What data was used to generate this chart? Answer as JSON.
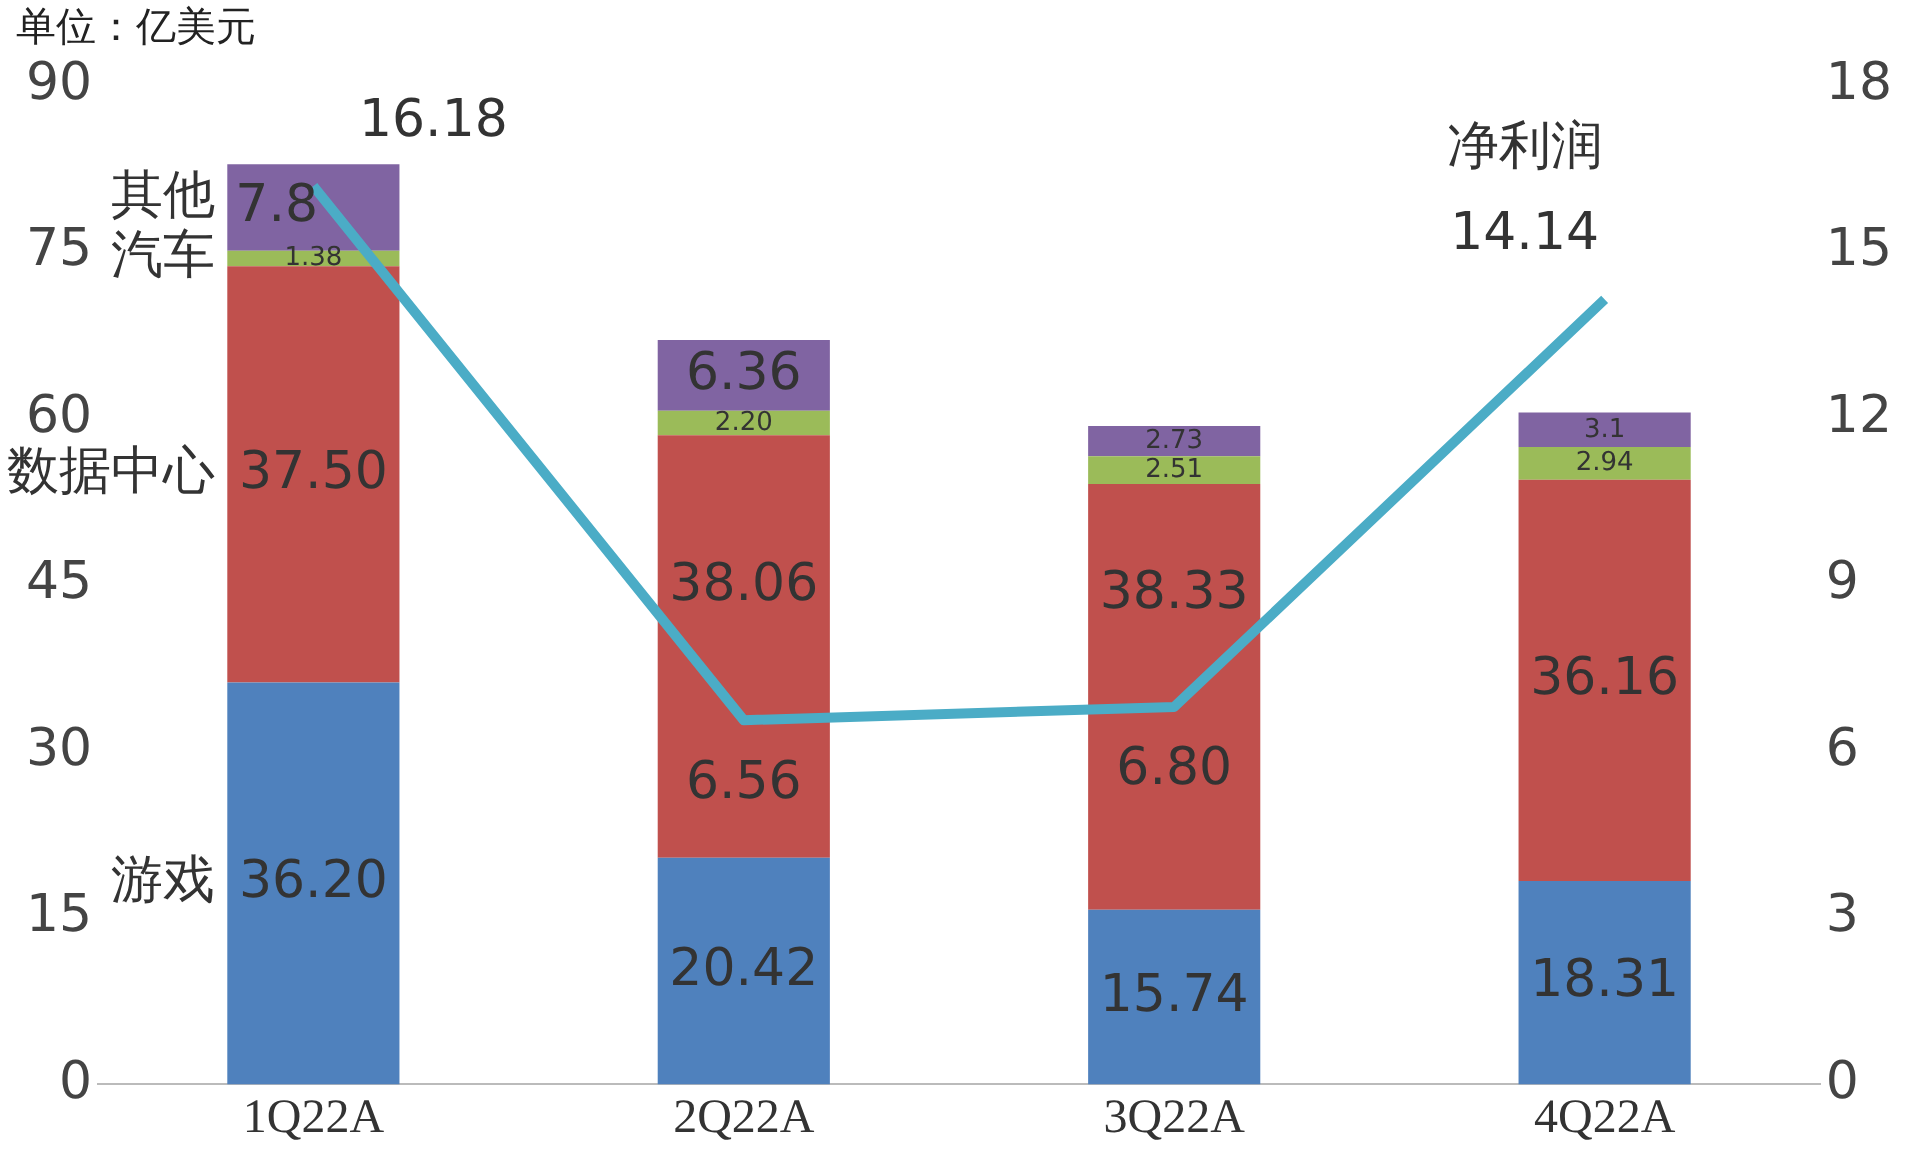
{
  "chart_data": {
    "type": "bar",
    "stacked": true,
    "title": "单位：亿美元",
    "categories": [
      "1Q22A",
      "2Q22A",
      "3Q22A",
      "4Q22A"
    ],
    "series": [
      {
        "name": "游戏",
        "color": "#4f81bd",
        "values": [
          36.2,
          20.42,
          15.74,
          18.31
        ],
        "value_labels": [
          "36.20",
          "20.42",
          "15.74",
          "18.31"
        ]
      },
      {
        "name": "数据中心",
        "color": "#c0504d",
        "values": [
          37.5,
          38.06,
          38.33,
          36.16
        ],
        "value_labels": [
          "37.50",
          "38.06",
          "38.33",
          "36.16"
        ]
      },
      {
        "name": "汽车",
        "color": "#9bbb59",
        "values": [
          1.38,
          2.2,
          2.51,
          2.94
        ],
        "value_labels": [
          "1.38",
          "2.20",
          "2.51",
          "2.94"
        ]
      },
      {
        "name": "其他",
        "color": "#8064a2",
        "values": [
          7.8,
          6.36,
          2.73,
          3.1
        ],
        "value_labels": [
          "7.8",
          "6.36",
          "2.73",
          "3.1"
        ]
      },
      {
        "name": "净利润",
        "type": "line",
        "axis": "y2",
        "color": "#4bacc6",
        "values": [
          16.18,
          6.56,
          6.8,
          14.14
        ],
        "value_labels": [
          "16.18",
          "6.56",
          "6.80",
          "14.14"
        ]
      }
    ],
    "ylim": [
      0,
      90
    ],
    "yticks": [
      0,
      15,
      30,
      45,
      60,
      75,
      90
    ],
    "y2lim": [
      0,
      18
    ],
    "y2ticks": [
      0,
      3,
      6,
      9,
      12,
      15,
      18
    ],
    "grid": false,
    "legend": false
  }
}
